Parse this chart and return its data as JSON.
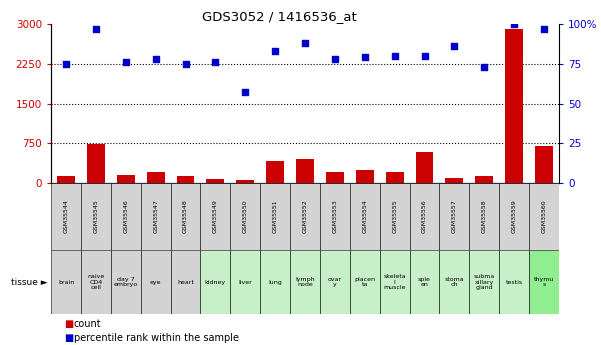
{
  "title": "GDS3052 / 1416536_at",
  "gsm_labels": [
    "GSM35544",
    "GSM35545",
    "GSM35546",
    "GSM35547",
    "GSM35548",
    "GSM35549",
    "GSM35550",
    "GSM35551",
    "GSM35552",
    "GSM35553",
    "GSM35554",
    "GSM35555",
    "GSM35556",
    "GSM35557",
    "GSM35558",
    "GSM35559",
    "GSM35560"
  ],
  "tissue_labels": [
    "brain",
    "naive\nCD4\ncell",
    "day 7\nembryо",
    "eye",
    "heart",
    "kidney",
    "liver",
    "lung",
    "lymph\nnode",
    "ovar\ny",
    "placen\nta",
    "skeleta\nl\nmuscle",
    "sple\nen",
    "stoma\nch",
    "subma\nxillary\ngland",
    "testis",
    "thymu\ns"
  ],
  "tissue_colors": [
    "#d3d3d3",
    "#d3d3d3",
    "#d3d3d3",
    "#d3d3d3",
    "#d3d3d3",
    "#c8f0c8",
    "#c8f0c8",
    "#c8f0c8",
    "#c8f0c8",
    "#c8f0c8",
    "#c8f0c8",
    "#c8f0c8",
    "#c8f0c8",
    "#c8f0c8",
    "#c8f0c8",
    "#c8f0c8",
    "#90ee90"
  ],
  "gsm_colors": [
    "#d3d3d3",
    "#d3d3d3",
    "#d3d3d3",
    "#d3d3d3",
    "#d3d3d3",
    "#d3d3d3",
    "#d3d3d3",
    "#d3d3d3",
    "#d3d3d3",
    "#d3d3d3",
    "#d3d3d3",
    "#d3d3d3",
    "#d3d3d3",
    "#d3d3d3",
    "#d3d3d3",
    "#d3d3d3",
    "#d3d3d3"
  ],
  "count_values": [
    130,
    730,
    150,
    200,
    130,
    70,
    50,
    420,
    450,
    200,
    250,
    200,
    580,
    90,
    130,
    2900,
    700
  ],
  "percentile_values": [
    75,
    97,
    76,
    78,
    75,
    76,
    57,
    83,
    88,
    78,
    79,
    80,
    80,
    86,
    73,
    100,
    97
  ],
  "left_yticks": [
    0,
    750,
    1500,
    2250,
    3000
  ],
  "right_ytick_labels": [
    "0",
    "25",
    "50",
    "75",
    "100%"
  ],
  "right_yticks": [
    0,
    25,
    50,
    75,
    100
  ],
  "left_color": "#cc0000",
  "right_color": "#0000cc",
  "bar_color": "#cc0000",
  "dot_color": "#0000cc",
  "ylim_left": [
    0,
    3000
  ],
  "ylim_right": [
    0,
    100
  ],
  "hgrid_vals": [
    750,
    1500,
    2250
  ]
}
